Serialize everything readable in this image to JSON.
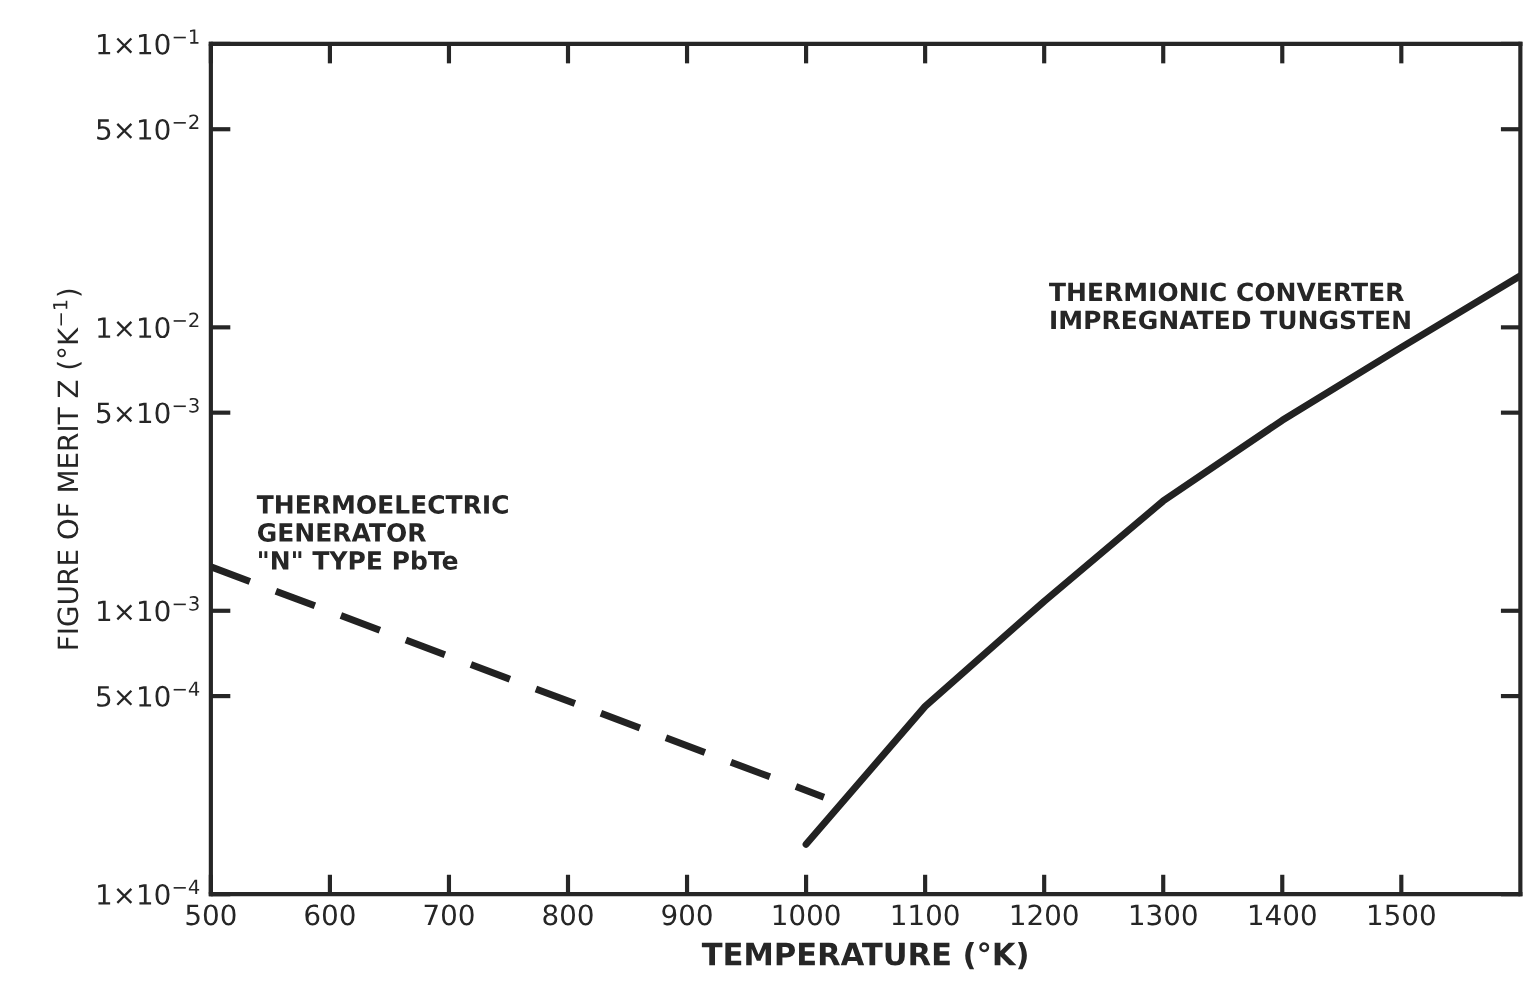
{
  "chart_data": {
    "type": "line",
    "xlabel": "TEMPERATURE (°K)",
    "ylabel": "FIGURE OF MERIT Z (°K$^{−1}$)",
    "log": true,
    "xlim": [
      500,
      1600
    ],
    "xticks": [
      500,
      600,
      700,
      800,
      900,
      1000,
      1100,
      1200,
      1300,
      1400,
      1500
    ],
    "ylim": [
      0.0001,
      0.1
    ],
    "yticks": [
      {
        "value": 0.0001,
        "label": "1×10$^{−4}$"
      },
      {
        "value": 0.0005,
        "label": "5×10$^{−4}$"
      },
      {
        "value": 0.001,
        "label": "1×10$^{−3}$"
      },
      {
        "value": 0.005,
        "label": "5×10$^{−3}$"
      },
      {
        "value": 0.01,
        "label": "1×10$^{−2}$"
      },
      {
        "value": 0.05,
        "label": "5×10$^{−2}$"
      },
      {
        "value": 0.1,
        "label": "1×10$^{−1}$"
      }
    ],
    "grid": false,
    "legend": false,
    "series": [
      {
        "color": "#222222",
        "line_style": "dashed",
        "x": [
          500,
          1015
        ],
        "values": [
          0.00143,
          0.00022
        ]
      },
      {
        "color": "#222222",
        "line_style": "solid",
        "x": [
          1000,
          1100,
          1200,
          1300,
          1400,
          1500,
          1600
        ],
        "values": [
          0.00015,
          0.00046,
          0.00108,
          0.00244,
          0.0047,
          0.0085,
          0.0152
        ]
      }
    ],
    "annotations": [
      "THERMOELECTRIC\nGENERATOR\n\"N\" TYPE PbTe",
      "THERMIONIC CONVERTER\nIMPREGNATED TUNGSTEN"
    ]
  }
}
